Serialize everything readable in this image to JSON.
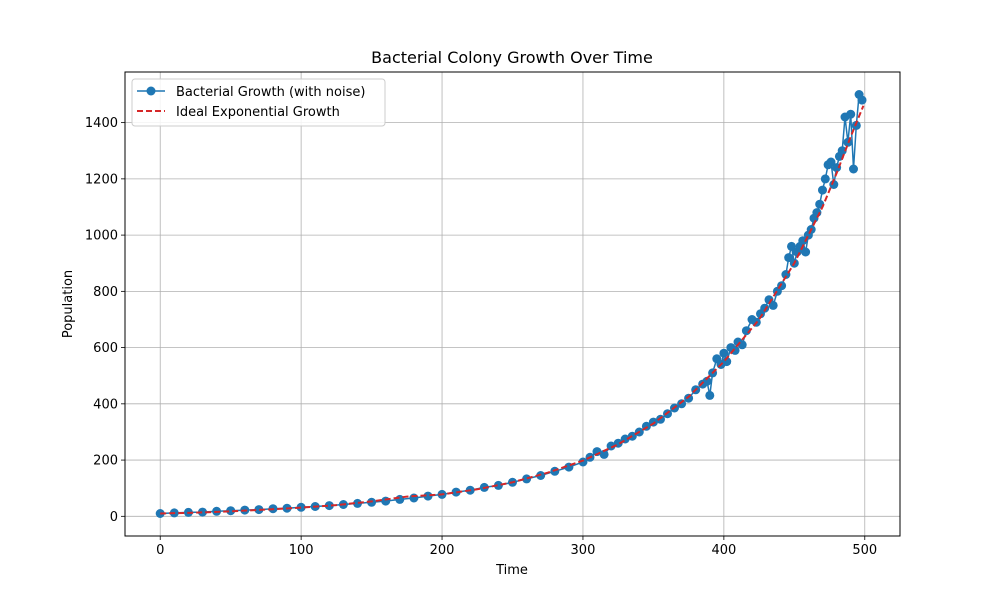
{
  "chart_data": {
    "type": "line",
    "title": "Bacterial Colony Growth Over Time",
    "xlabel": "Time",
    "ylabel": "Population",
    "xlim": [
      -25,
      525
    ],
    "ylim": [
      -70,
      1580
    ],
    "xticks": [
      0,
      100,
      200,
      300,
      400,
      500
    ],
    "yticks": [
      0,
      200,
      400,
      600,
      800,
      1000,
      1200,
      1400
    ],
    "grid": true,
    "legend_position": "upper-left",
    "legend": [
      "Bacterial Growth (with noise)",
      "Ideal Exponential Growth"
    ],
    "series": [
      {
        "name": "Bacterial Growth (with noise)",
        "style": "line-with-markers",
        "color": "#1f77b4",
        "x": [
          0,
          10,
          20,
          30,
          40,
          50,
          60,
          70,
          80,
          90,
          100,
          110,
          120,
          130,
          140,
          150,
          160,
          170,
          180,
          190,
          200,
          210,
          220,
          230,
          240,
          250,
          260,
          270,
          280,
          290,
          300,
          305,
          310,
          315,
          320,
          325,
          330,
          335,
          340,
          345,
          350,
          355,
          360,
          365,
          370,
          375,
          380,
          385,
          388,
          390,
          392,
          395,
          398,
          400,
          402,
          405,
          408,
          410,
          413,
          416,
          420,
          423,
          426,
          429,
          432,
          435,
          438,
          441,
          444,
          446,
          448,
          450,
          452,
          454,
          456,
          458,
          460,
          462,
          464,
          466,
          468,
          470,
          472,
          474,
          476,
          478,
          480,
          482,
          484,
          486,
          488,
          490,
          492,
          494,
          496,
          498
        ],
        "y": [
          10,
          12,
          14,
          15,
          18,
          20,
          22,
          24,
          27,
          29,
          32,
          35,
          38,
          42,
          46,
          50,
          54,
          60,
          65,
          72,
          78,
          86,
          93,
          103,
          110,
          121,
          133,
          145,
          160,
          175,
          193,
          210,
          230,
          220,
          250,
          260,
          275,
          285,
          300,
          320,
          335,
          345,
          365,
          385,
          400,
          420,
          450,
          470,
          480,
          430,
          510,
          560,
          540,
          580,
          550,
          600,
          590,
          620,
          610,
          660,
          700,
          690,
          720,
          740,
          770,
          750,
          800,
          820,
          860,
          920,
          960,
          900,
          940,
          960,
          980,
          940,
          1000,
          1020,
          1060,
          1080,
          1110,
          1160,
          1200,
          1250,
          1260,
          1180,
          1240,
          1280,
          1300,
          1420,
          1330,
          1430,
          1235,
          1390,
          1500,
          1480
        ]
      },
      {
        "name": "Ideal Exponential Growth",
        "style": "dashed",
        "color": "#d62728",
        "x": [
          0,
          25,
          50,
          75,
          100,
          125,
          150,
          175,
          200,
          225,
          250,
          275,
          300,
          325,
          350,
          375,
          400,
          425,
          450,
          460,
          470,
          480,
          490,
          499
        ],
        "y": [
          10,
          13,
          18,
          24,
          31,
          40,
          53,
          70,
          78,
          96,
          121,
          155,
          198,
          256,
          330,
          425,
          550,
          700,
          900,
          1000,
          1100,
          1220,
          1350,
          1460
        ]
      }
    ]
  }
}
